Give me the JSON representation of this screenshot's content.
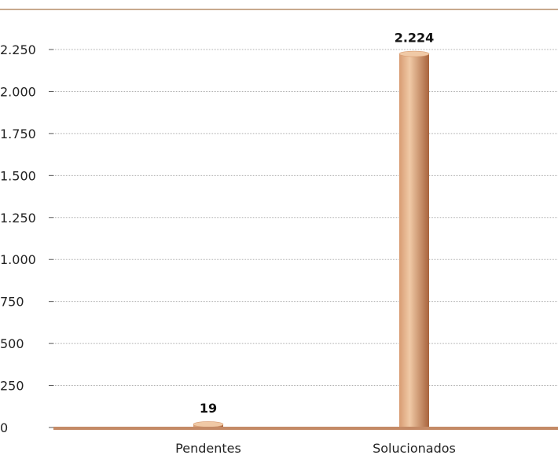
{
  "chart_data": {
    "type": "bar",
    "title": "",
    "xlabel": "",
    "ylabel": "",
    "categories": [
      "Pendentes",
      "Solucionados"
    ],
    "values": [
      19,
      2224
    ],
    "data_labels": [
      "19",
      "2.224"
    ],
    "ylim": [
      0,
      2250
    ],
    "yticks": [
      0,
      250,
      500,
      750,
      1000,
      1250,
      1500,
      1750,
      2000,
      2250
    ],
    "ytick_labels": [
      "0",
      "250",
      "500",
      "750",
      "1.000",
      "1.250",
      "1.500",
      "1.750",
      "2.000",
      "2.250"
    ],
    "grid": true,
    "legend": "none",
    "colors": {
      "bar_light": "#f0c9a6",
      "bar_mid": "#d89c72",
      "bar_dark": "#a8643d",
      "axis": "#c48a66",
      "grid": "#b0b0b0",
      "top_rule": "#c8a98e"
    }
  }
}
